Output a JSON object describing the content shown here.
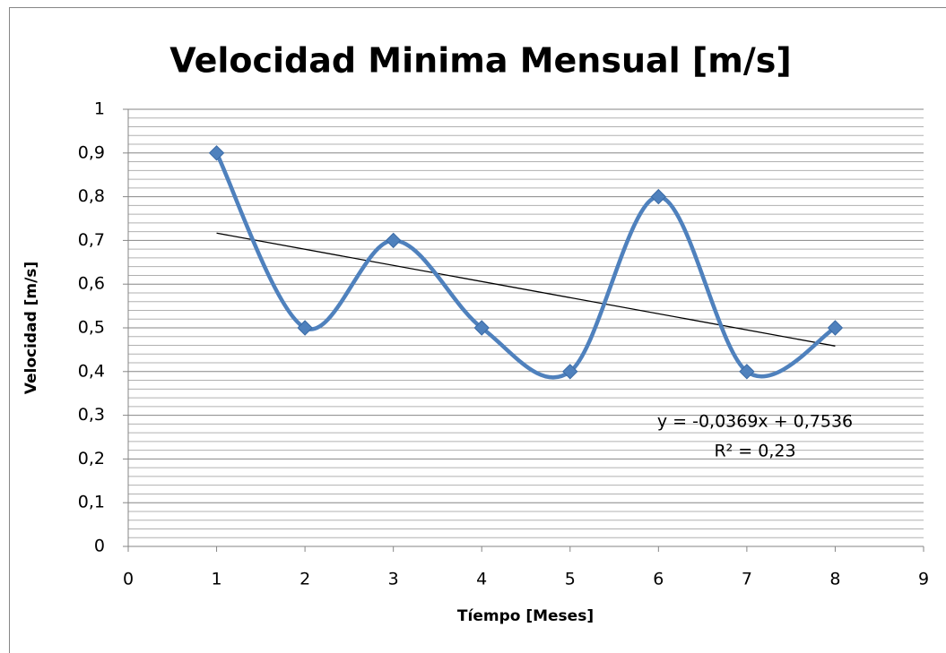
{
  "chart_data": {
    "type": "scatter",
    "title": "Velocidad Minima Mensual [m/s]",
    "x_label": "Tíempo [Meses]",
    "y_label": "Velocidad [m/s]",
    "x": [
      1,
      2,
      3,
      4,
      5,
      6,
      7,
      8
    ],
    "series": [
      {
        "name": "Velocidad",
        "color": "#4f81bd",
        "values": [
          0.9,
          0.5,
          0.7,
          0.5,
          0.4,
          0.8,
          0.4,
          0.5
        ]
      }
    ],
    "smooth": true,
    "xlim": [
      0,
      9
    ],
    "xticks": [
      0,
      1,
      2,
      3,
      4,
      5,
      6,
      7,
      8,
      9
    ],
    "ylim": [
      0,
      1
    ],
    "yticks": [
      0,
      {
        "value": 0.1,
        "label": "0,1"
      },
      {
        "value": 0.2,
        "label": "0,2"
      },
      {
        "value": 0.3,
        "label": "0,3"
      },
      {
        "value": 0.4,
        "label": "0,4"
      },
      {
        "value": 0.5,
        "label": "0,5"
      },
      {
        "value": 0.6,
        "label": "0,6"
      },
      {
        "value": 0.7,
        "label": "0,7"
      },
      {
        "value": 0.8,
        "label": "0,8"
      },
      {
        "value": 0.9,
        "label": "0,9"
      },
      1
    ],
    "grid": true,
    "minor_grid": true,
    "trendline": {
      "slope": -0.0369,
      "intercept": 0.7536,
      "color": "#000000",
      "equation": "y = -0,0369x + 0,7536",
      "r2_label": "R² = 0,23"
    }
  }
}
